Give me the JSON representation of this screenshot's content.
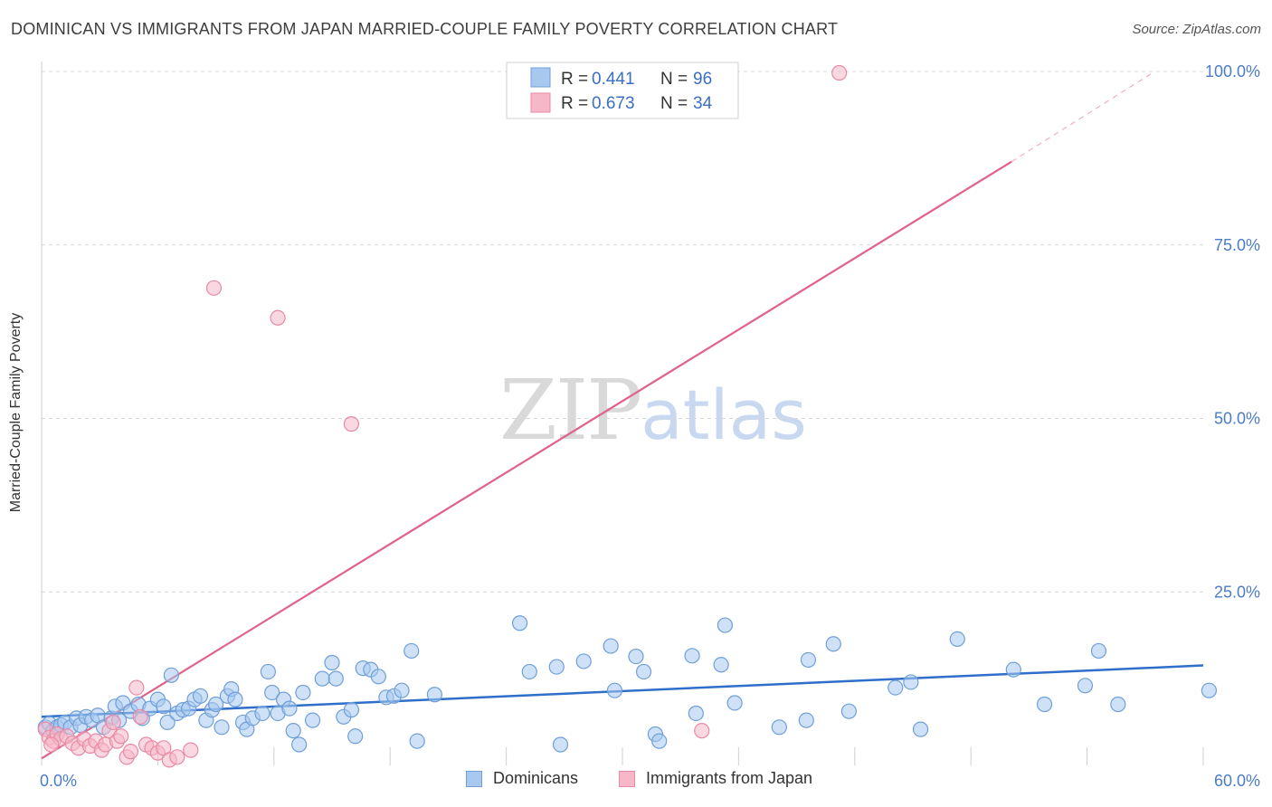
{
  "title": "DOMINICAN VS IMMIGRANTS FROM JAPAN MARRIED-COUPLE FAMILY POVERTY CORRELATION CHART",
  "source": "Source: ZipAtlas.com",
  "watermark": {
    "zip": "ZIP",
    "atlas": "atlas"
  },
  "legend_top": {
    "entries": [
      {
        "r_label": "R = ",
        "r_value": "0.441",
        "n_label": "N = ",
        "n_value": "96"
      },
      {
        "r_label": "R = ",
        "r_value": "0.673",
        "n_label": "N = ",
        "n_value": "34"
      }
    ]
  },
  "legend_bottom": [
    "Dominicans",
    "Immigrants from Japan"
  ],
  "colors": {
    "blue_fill": "#a8c8f0",
    "blue_stroke": "#6f9fd8",
    "blue_line": "#2f6fca",
    "pink_fill": "#f6b8c9",
    "pink_stroke": "#e88aa6",
    "pink_line": "#e0628a",
    "grid": "#d8d8d8",
    "axis_text": "#4a7cc9"
  },
  "chart_data": {
    "type": "scatter",
    "title": "DOMINICAN VS IMMIGRANTS FROM JAPAN MARRIED-COUPLE FAMILY POVERTY CORRELATION CHART",
    "xlabel": "",
    "ylabel": "Married-Couple Family Poverty",
    "xlim": [
      0,
      60
    ],
    "ylim": [
      0,
      100
    ],
    "x_tick_labels": [
      "0.0%",
      "60.0%"
    ],
    "y_ticks": [
      25,
      50,
      75,
      100
    ],
    "y_tick_labels": [
      "25.0%",
      "50.0%",
      "75.0%",
      "100.0%"
    ],
    "grid": true,
    "series": [
      {
        "name": "Dominicans",
        "r": 0.441,
        "n": 96,
        "trend": {
          "x": [
            0,
            60
          ],
          "y": [
            7.0,
            14.4
          ]
        },
        "points": [
          [
            0.2,
            5.5
          ],
          [
            0.4,
            6.0
          ],
          [
            0.6,
            5.0
          ],
          [
            0.8,
            5.5
          ],
          [
            1.0,
            5.8
          ],
          [
            1.2,
            6.2
          ],
          [
            1.5,
            5.5
          ],
          [
            1.8,
            6.8
          ],
          [
            2.0,
            5.8
          ],
          [
            2.3,
            7.0
          ],
          [
            2.6,
            6.5
          ],
          [
            2.9,
            7.2
          ],
          [
            3.2,
            5.5
          ],
          [
            3.6,
            6.8
          ],
          [
            3.8,
            8.5
          ],
          [
            4.0,
            6.5
          ],
          [
            4.2,
            9.0
          ],
          [
            4.6,
            7.8
          ],
          [
            5.0,
            8.8
          ],
          [
            5.2,
            6.8
          ],
          [
            5.6,
            8.2
          ],
          [
            6.0,
            9.5
          ],
          [
            6.3,
            8.5
          ],
          [
            6.5,
            6.2
          ],
          [
            6.7,
            13.0
          ],
          [
            7.0,
            7.5
          ],
          [
            7.3,
            8.0
          ],
          [
            7.6,
            8.2
          ],
          [
            7.9,
            9.5
          ],
          [
            8.2,
            10.0
          ],
          [
            8.5,
            6.5
          ],
          [
            8.8,
            8.0
          ],
          [
            9.0,
            8.8
          ],
          [
            9.3,
            5.5
          ],
          [
            9.6,
            10.0
          ],
          [
            9.8,
            11.0
          ],
          [
            10.0,
            9.5
          ],
          [
            10.4,
            6.2
          ],
          [
            10.6,
            5.2
          ],
          [
            10.9,
            6.8
          ],
          [
            11.4,
            7.5
          ],
          [
            11.7,
            13.5
          ],
          [
            11.9,
            10.5
          ],
          [
            12.2,
            7.5
          ],
          [
            12.5,
            9.5
          ],
          [
            12.8,
            8.2
          ],
          [
            13.0,
            5.0
          ],
          [
            13.3,
            3.0
          ],
          [
            13.5,
            10.5
          ],
          [
            14.0,
            6.5
          ],
          [
            14.5,
            12.5
          ],
          [
            15.0,
            14.8
          ],
          [
            15.2,
            12.5
          ],
          [
            15.6,
            7.0
          ],
          [
            16.0,
            8.0
          ],
          [
            16.2,
            4.2
          ],
          [
            16.6,
            14.0
          ],
          [
            17.0,
            13.8
          ],
          [
            17.4,
            12.8
          ],
          [
            17.8,
            9.8
          ],
          [
            18.2,
            10.0
          ],
          [
            18.6,
            10.8
          ],
          [
            19.1,
            16.5
          ],
          [
            19.4,
            3.5
          ],
          [
            20.3,
            10.2
          ],
          [
            24.7,
            20.5
          ],
          [
            25.2,
            13.5
          ],
          [
            26.6,
            14.2
          ],
          [
            26.8,
            3.0
          ],
          [
            28.0,
            15.0
          ],
          [
            29.4,
            17.2
          ],
          [
            29.6,
            10.8
          ],
          [
            30.7,
            15.7
          ],
          [
            31.1,
            13.5
          ],
          [
            31.7,
            4.5
          ],
          [
            31.9,
            3.5
          ],
          [
            33.6,
            15.8
          ],
          [
            33.8,
            7.5
          ],
          [
            35.1,
            14.5
          ],
          [
            35.3,
            20.2
          ],
          [
            35.8,
            9.0
          ],
          [
            38.1,
            5.5
          ],
          [
            39.5,
            6.5
          ],
          [
            39.6,
            15.2
          ],
          [
            40.9,
            17.5
          ],
          [
            41.7,
            7.8
          ],
          [
            44.1,
            11.2
          ],
          [
            44.9,
            12.0
          ],
          [
            45.4,
            5.2
          ],
          [
            47.3,
            18.2
          ],
          [
            50.2,
            13.8
          ],
          [
            51.8,
            8.8
          ],
          [
            53.9,
            11.5
          ],
          [
            54.6,
            16.5
          ],
          [
            55.6,
            8.8
          ],
          [
            60.3,
            10.8
          ]
        ]
      },
      {
        "name": "Immigrants from Japan",
        "r": 0.673,
        "n": 34,
        "trend": {
          "x": [
            0,
            50.1
          ],
          "y": [
            1.0,
            87.0
          ]
        },
        "trend_dashed_extension": {
          "x": [
            50.1,
            57.5
          ],
          "y": [
            87.0,
            100.0
          ]
        },
        "points": [
          [
            0.2,
            5.2
          ],
          [
            0.4,
            4.0
          ],
          [
            0.6,
            3.5
          ],
          [
            0.8,
            4.5
          ],
          [
            1.0,
            3.8
          ],
          [
            1.3,
            4.2
          ],
          [
            1.6,
            3.2
          ],
          [
            1.9,
            2.5
          ],
          [
            2.2,
            3.8
          ],
          [
            2.5,
            2.8
          ],
          [
            2.8,
            3.5
          ],
          [
            3.1,
            2.2
          ],
          [
            3.3,
            3.0
          ],
          [
            3.5,
            5.0
          ],
          [
            3.7,
            6.2
          ],
          [
            3.9,
            3.5
          ],
          [
            4.1,
            4.2
          ],
          [
            4.4,
            1.2
          ],
          [
            4.6,
            2.0
          ],
          [
            4.9,
            11.2
          ],
          [
            5.1,
            7.0
          ],
          [
            5.4,
            3.0
          ],
          [
            5.7,
            2.5
          ],
          [
            6.0,
            1.8
          ],
          [
            6.3,
            2.5
          ],
          [
            6.6,
            0.8
          ],
          [
            7.0,
            1.2
          ],
          [
            7.7,
            2.2
          ],
          [
            8.9,
            68.8
          ],
          [
            12.2,
            64.5
          ],
          [
            16.0,
            49.2
          ],
          [
            34.1,
            5.0
          ],
          [
            41.2,
            99.8
          ],
          [
            0.5,
            3.0
          ]
        ]
      }
    ]
  }
}
